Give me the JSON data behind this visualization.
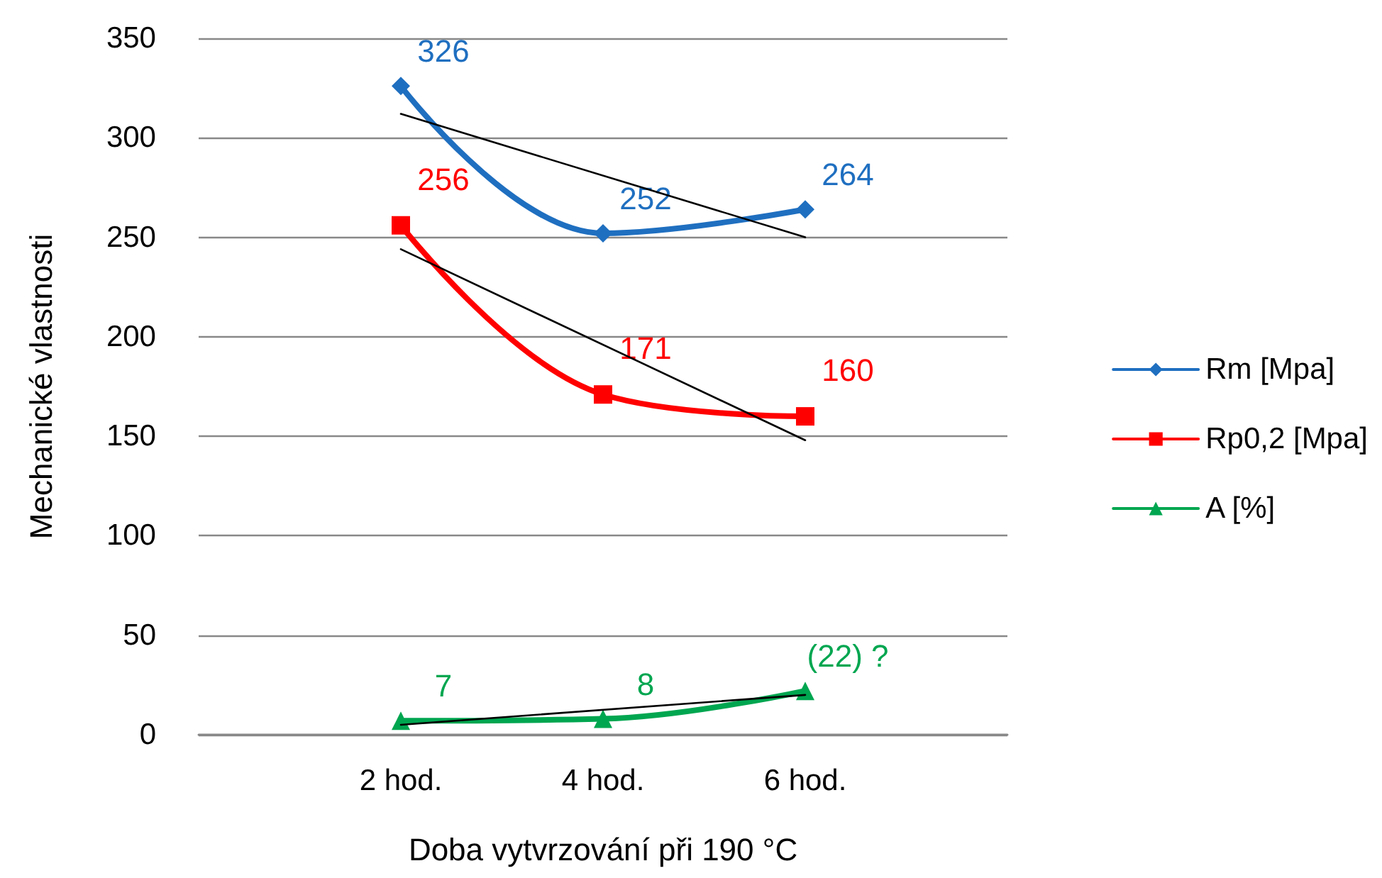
{
  "chart_data": {
    "type": "line",
    "xlabel": "Doba vytvrzování při 190 °C",
    "ylabel": "Mechanické vlastnosti",
    "categories": [
      null,
      "2 hod.",
      "4 hod.",
      "6 hod.",
      null
    ],
    "ylim": [
      0,
      350
    ],
    "yticks": [
      0,
      50,
      100,
      150,
      200,
      250,
      300,
      350
    ],
    "grid": "y",
    "legend": "right",
    "series": [
      {
        "name": "Rm [Mpa]",
        "color": "#1f6fc0",
        "marker": "diamond",
        "values": [
          null,
          326,
          252,
          264,
          null
        ],
        "value_labels": [
          null,
          "326",
          "252",
          "264",
          null
        ]
      },
      {
        "name": "Rp0,2 [Mpa]",
        "color": "#ff0000",
        "marker": "square",
        "values": [
          null,
          256,
          171,
          160,
          null
        ],
        "value_labels": [
          null,
          "256",
          "171",
          "160",
          null
        ]
      },
      {
        "name": "A [%]",
        "color": "#00a650",
        "marker": "triangle",
        "values": [
          null,
          7,
          8,
          22,
          null
        ],
        "value_labels": [
          null,
          "7",
          "8",
          "(22) ?",
          null
        ]
      },
      {
        "color": "#000000",
        "marker": "none",
        "x": [
          "2 hod.",
          "6 hod."
        ],
        "values": [
          312,
          250
        ]
      },
      {
        "color": "#000000",
        "marker": "none",
        "x": [
          "2 hod.",
          "6 hod."
        ],
        "values": [
          244,
          148
        ]
      },
      {
        "color": "#000000",
        "marker": "none",
        "x": [
          "2 hod.",
          "6 hod."
        ],
        "values": [
          5,
          20
        ]
      }
    ]
  }
}
